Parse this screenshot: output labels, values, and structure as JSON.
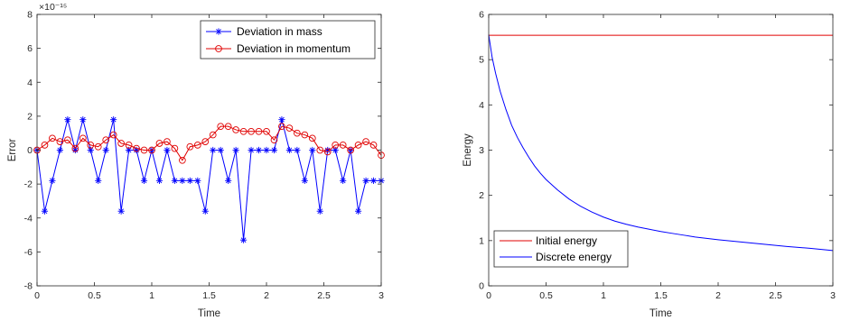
{
  "colors": {
    "mass": "#0000ff",
    "momentum": "#e00000",
    "initial_energy": "#e00000",
    "discrete_energy": "#0000ff",
    "axes": "#262626"
  },
  "chart_data": [
    {
      "type": "line",
      "xlabel": "Time",
      "ylabel": "Error",
      "exponent_label": "×10⁻¹⁵",
      "xlim": [
        0,
        3
      ],
      "ylim": [
        -8,
        8
      ],
      "xticks": [
        0,
        0.5,
        1,
        1.5,
        2,
        2.5,
        3
      ],
      "xtick_labels": [
        "0",
        "0.5",
        "1",
        "1.5",
        "2",
        "2.5",
        "3"
      ],
      "yticks": [
        -8,
        -6,
        -4,
        -2,
        0,
        2,
        4,
        6,
        8
      ],
      "ytick_labels": [
        "-8",
        "-6",
        "-4",
        "-2",
        "0",
        "2",
        "4",
        "6",
        "8"
      ],
      "grid": false,
      "legend_position": "top-right",
      "series": [
        {
          "name": "Deviation in mass",
          "marker": "asterisk",
          "color": "#0000ff",
          "x": [
            0,
            0.0667,
            0.1333,
            0.2,
            0.2667,
            0.3333,
            0.4,
            0.4667,
            0.5333,
            0.6,
            0.6667,
            0.7333,
            0.8,
            0.8667,
            0.9333,
            1.0,
            1.0667,
            1.1333,
            1.2,
            1.2667,
            1.3333,
            1.4,
            1.4667,
            1.5333,
            1.6,
            1.6667,
            1.7333,
            1.8,
            1.8667,
            1.9333,
            2.0,
            2.0667,
            2.1333,
            2.2,
            2.2667,
            2.3333,
            2.4,
            2.4667,
            2.5333,
            2.6,
            2.6667,
            2.7333,
            2.8,
            2.8667,
            2.9333,
            3.0
          ],
          "values": [
            0,
            -3.6,
            -1.8,
            0,
            1.8,
            0,
            1.8,
            0,
            -1.8,
            0,
            1.8,
            -3.6,
            0,
            0,
            -1.8,
            0,
            -1.8,
            0,
            -1.8,
            -1.8,
            -1.8,
            -1.8,
            -3.6,
            0,
            0,
            -1.8,
            0,
            -5.3,
            0,
            0,
            0,
            0,
            1.8,
            0,
            0,
            -1.8,
            0,
            -3.6,
            0,
            0,
            -1.8,
            0,
            -3.6,
            -1.8,
            -1.8,
            -1.8
          ]
        },
        {
          "name": "Deviation in momentum",
          "marker": "circle",
          "color": "#e00000",
          "x": [
            0,
            0.0667,
            0.1333,
            0.2,
            0.2667,
            0.3333,
            0.4,
            0.4667,
            0.5333,
            0.6,
            0.6667,
            0.7333,
            0.8,
            0.8667,
            0.9333,
            1.0,
            1.0667,
            1.1333,
            1.2,
            1.2667,
            1.3333,
            1.4,
            1.4667,
            1.5333,
            1.6,
            1.6667,
            1.7333,
            1.8,
            1.8667,
            1.9333,
            2.0,
            2.0667,
            2.1333,
            2.2,
            2.2667,
            2.3333,
            2.4,
            2.4667,
            2.5333,
            2.6,
            2.6667,
            2.7333,
            2.8,
            2.8667,
            2.9333,
            3.0
          ],
          "values": [
            0,
            0.3,
            0.7,
            0.5,
            0.6,
            0.1,
            0.7,
            0.3,
            0.2,
            0.6,
            0.9,
            0.4,
            0.3,
            0.1,
            0.0,
            0.0,
            0.4,
            0.5,
            0.1,
            -0.6,
            0.2,
            0.3,
            0.5,
            0.9,
            1.4,
            1.4,
            1.2,
            1.1,
            1.1,
            1.1,
            1.1,
            0.6,
            1.4,
            1.3,
            1.0,
            0.9,
            0.7,
            0.0,
            -0.1,
            0.3,
            0.3,
            0.0,
            0.3,
            0.5,
            0.3,
            -0.3
          ]
        }
      ]
    },
    {
      "type": "line",
      "xlabel": "Time",
      "ylabel": "Energy",
      "xlim": [
        0,
        3
      ],
      "ylim": [
        0,
        6
      ],
      "xticks": [
        0,
        0.5,
        1,
        1.5,
        2,
        2.5,
        3
      ],
      "xtick_labels": [
        "0",
        "0.5",
        "1",
        "1.5",
        "2",
        "2.5",
        "3"
      ],
      "yticks": [
        0,
        1,
        2,
        3,
        4,
        5,
        6
      ],
      "ytick_labels": [
        "0",
        "1",
        "2",
        "3",
        "4",
        "5",
        "6"
      ],
      "grid": false,
      "legend_position": "bottom-left",
      "series": [
        {
          "name": "Initial energy",
          "color": "#e00000",
          "x": [
            0,
            3
          ],
          "values": [
            5.54,
            5.54
          ]
        },
        {
          "name": "Discrete energy",
          "color": "#0000ff",
          "x": [
            0,
            0.03,
            0.06,
            0.1,
            0.15,
            0.2,
            0.25,
            0.3,
            0.35,
            0.4,
            0.45,
            0.5,
            0.6,
            0.7,
            0.8,
            0.9,
            1.0,
            1.1,
            1.2,
            1.3,
            1.4,
            1.5,
            1.6,
            1.7,
            1.8,
            1.9,
            2.0,
            2.2,
            2.4,
            2.6,
            2.8,
            3.0
          ],
          "values": [
            5.55,
            5.05,
            4.7,
            4.3,
            3.9,
            3.55,
            3.28,
            3.05,
            2.84,
            2.65,
            2.49,
            2.35,
            2.12,
            1.92,
            1.76,
            1.63,
            1.52,
            1.43,
            1.36,
            1.3,
            1.25,
            1.2,
            1.16,
            1.12,
            1.08,
            1.05,
            1.02,
            0.97,
            0.92,
            0.87,
            0.83,
            0.78
          ]
        }
      ]
    }
  ]
}
